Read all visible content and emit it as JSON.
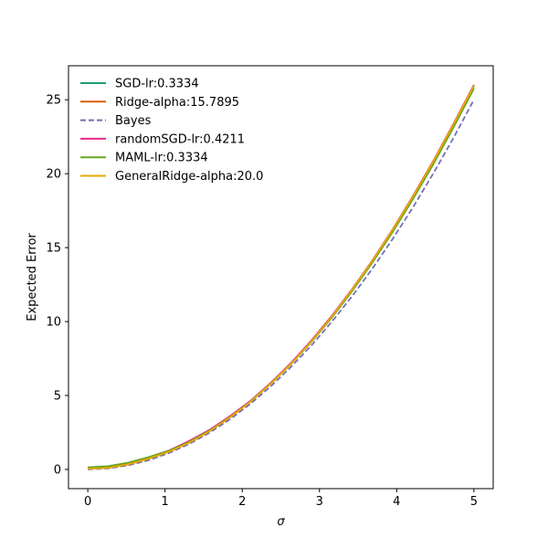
{
  "chart_data": {
    "type": "line",
    "title": "",
    "xlabel": "σ",
    "ylabel": "Expected Error",
    "xlim": [
      -0.25,
      5.25
    ],
    "ylim": [
      -1.3,
      27.3
    ],
    "xticks": [
      0,
      1,
      2,
      3,
      4,
      5
    ],
    "xtick_labels": [
      "0",
      "1",
      "2",
      "3",
      "4",
      "5"
    ],
    "yticks": [
      0,
      5,
      10,
      15,
      20,
      25
    ],
    "ytick_labels": [
      "0",
      "5",
      "10",
      "15",
      "20",
      "25"
    ],
    "grid": false,
    "legend_position": "top-left",
    "x": [
      0,
      0.2632,
      0.5263,
      0.7895,
      1.0526,
      1.3158,
      1.5789,
      1.8421,
      2.1053,
      2.3684,
      2.6316,
      2.8947,
      3.1579,
      3.4211,
      3.6842,
      3.9474,
      4.2105,
      4.4737,
      4.7368,
      5.0
    ],
    "series": [
      {
        "name": "SGD-lr:0.3334",
        "color": "#1b9e77",
        "dash": "solid",
        "values": [
          0.13,
          0.2,
          0.43,
          0.81,
          1.27,
          1.88,
          2.66,
          3.58,
          4.62,
          5.85,
          7.18,
          8.7,
          10.36,
          12.17,
          14.11,
          16.2,
          18.48,
          20.8,
          23.31,
          25.9
        ]
      },
      {
        "name": "Ridge-alpha:15.7895",
        "color": "#d95f02",
        "dash": "solid",
        "values": [
          0.03,
          0.1,
          0.34,
          0.72,
          1.19,
          1.81,
          2.58,
          3.52,
          4.56,
          5.79,
          7.14,
          8.65,
          10.33,
          12.15,
          14.11,
          16.22,
          18.48,
          20.85,
          23.38,
          25.99
        ]
      },
      {
        "name": "Bayes",
        "color": "#7570b3",
        "dash": "dashed",
        "values": [
          0.0,
          0.07,
          0.28,
          0.62,
          1.11,
          1.73,
          2.49,
          3.39,
          4.43,
          5.61,
          6.93,
          8.38,
          9.97,
          11.7,
          13.57,
          15.58,
          17.72,
          20.01,
          22.43,
          25.0
        ]
      },
      {
        "name": "randomSGD-lr:0.4211",
        "color": "#e7298a",
        "dash": "solid",
        "values": [
          0.12,
          0.19,
          0.43,
          0.82,
          1.28,
          1.93,
          2.68,
          3.61,
          4.63,
          5.85,
          7.2,
          8.71,
          10.37,
          12.18,
          14.13,
          16.23,
          18.48,
          20.86,
          23.38,
          26.0
        ]
      },
      {
        "name": "MAML-lr:0.3334",
        "color": "#66a61e",
        "dash": "solid",
        "values": [
          0.14,
          0.22,
          0.46,
          0.83,
          1.27,
          1.87,
          2.63,
          3.54,
          4.58,
          5.79,
          7.12,
          8.61,
          10.25,
          12.04,
          13.98,
          16.05,
          18.28,
          20.63,
          23.14,
          25.75
        ]
      },
      {
        "name": "GeneralRidge-alpha:20.0",
        "color": "#e6ab02",
        "dash": "solid",
        "values": [
          0.04,
          0.11,
          0.35,
          0.73,
          1.2,
          1.82,
          2.59,
          3.53,
          4.57,
          5.8,
          7.14,
          8.65,
          10.32,
          12.14,
          14.1,
          16.2,
          18.45,
          20.82,
          23.34,
          25.95
        ]
      }
    ]
  }
}
